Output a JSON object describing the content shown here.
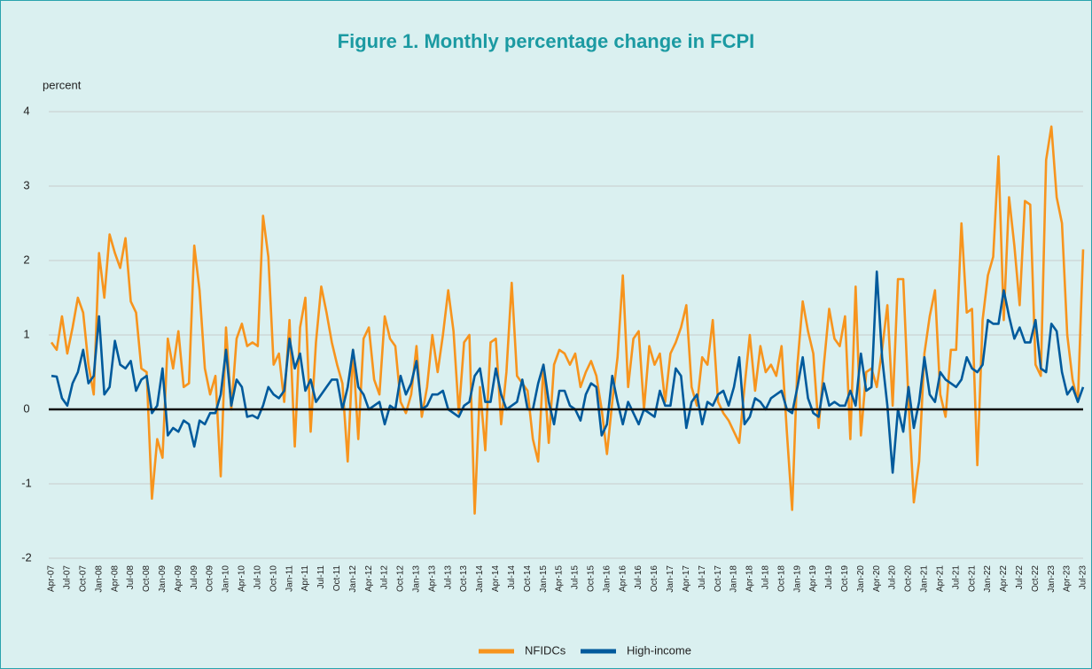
{
  "chart_data": {
    "type": "line",
    "title": "Figure 1. Monthly percentage change in FCPI",
    "y_label": "percent",
    "categories": [
      "Apr-07",
      null,
      null,
      "Jul-07",
      null,
      null,
      "Oct-07",
      null,
      null,
      "Jan-08",
      null,
      null,
      "Apr-08",
      null,
      null,
      "Jul-08",
      null,
      null,
      "Oct-08",
      null,
      null,
      "Jan-09",
      null,
      null,
      "Apr-09",
      null,
      null,
      "Jul-09",
      null,
      null,
      "Oct-09",
      null,
      null,
      "Jan-10",
      null,
      null,
      "Apr-10",
      null,
      null,
      "Jul-10",
      null,
      null,
      "Oct-10",
      null,
      null,
      "Jan-11",
      null,
      null,
      "Apr-11",
      null,
      null,
      "Jul-11",
      null,
      null,
      "Oct-11",
      null,
      null,
      "Jan-12",
      null,
      null,
      "Apr-12",
      null,
      null,
      "Jul-12",
      null,
      null,
      "Oct-12",
      null,
      null,
      "Jan-13",
      null,
      null,
      "Apr-13",
      null,
      null,
      "Jul-13",
      null,
      null,
      "Oct-13",
      null,
      null,
      "Jan-14",
      null,
      null,
      "Apr-14",
      null,
      null,
      "Jul-14",
      null,
      null,
      "Oct-14",
      null,
      null,
      "Jan-15",
      null,
      null,
      "Apr-15",
      null,
      null,
      "Jul-15",
      null,
      null,
      "Oct-15",
      null,
      null,
      "Jan-16",
      null,
      null,
      "Apr-16",
      null,
      null,
      "Jul-16",
      null,
      null,
      "Oct-16",
      null,
      null,
      "Jan-17",
      null,
      null,
      "Apr-17",
      null,
      null,
      "Jul-17",
      null,
      null,
      "Oct-17",
      null,
      null,
      "Jan-18",
      null,
      null,
      "Apr-18",
      null,
      null,
      "Jul-18",
      null,
      null,
      "Oct-18",
      null,
      null,
      "Jan-19",
      null,
      null,
      "Apr-19",
      null,
      null,
      "Jul-19",
      null,
      null,
      "Oct-19",
      null,
      null,
      "Jan-20",
      null,
      null,
      "Apr-20",
      null,
      null,
      "Jul-20",
      null,
      null,
      "Oct-20",
      null,
      null,
      "Jan-21",
      null,
      null,
      "Apr-21",
      null,
      null,
      "Jul-21",
      null,
      null,
      "Oct-21",
      null,
      null,
      "Jan-22",
      null,
      null,
      "Apr-22",
      null,
      null,
      "Jul-22",
      null,
      null,
      "Oct-22",
      null,
      null,
      "Jan-23",
      null,
      null,
      "Apr-23",
      null,
      null,
      "Jul-23"
    ],
    "series": [
      {
        "name": "NFIDCs",
        "color": "#f7941d",
        "values": [
          0.9,
          0.8,
          1.25,
          0.75,
          1.1,
          1.5,
          1.3,
          0.6,
          0.2,
          2.1,
          1.5,
          2.35,
          2.1,
          1.9,
          2.3,
          1.45,
          1.3,
          0.55,
          0.5,
          -1.2,
          -0.4,
          -0.65,
          0.95,
          0.55,
          1.05,
          0.3,
          0.35,
          2.2,
          1.6,
          0.55,
          0.2,
          0.45,
          -0.9,
          1.1,
          0.0,
          0.95,
          1.15,
          0.85,
          0.9,
          0.85,
          2.6,
          2.05,
          0.6,
          0.75,
          0.1,
          1.2,
          -0.5,
          1.1,
          1.5,
          -0.3,
          0.9,
          1.65,
          1.3,
          0.9,
          0.6,
          0.35,
          -0.7,
          0.8,
          -0.4,
          0.95,
          1.1,
          0.4,
          0.2,
          1.25,
          0.95,
          0.85,
          0.1,
          -0.05,
          0.2,
          0.85,
          -0.1,
          0.3,
          1.0,
          0.5,
          1.0,
          1.6,
          1.05,
          -0.05,
          0.9,
          1.0,
          -1.4,
          0.3,
          -0.55,
          0.9,
          0.95,
          -0.2,
          0.5,
          1.7,
          0.45,
          0.35,
          0.25,
          -0.4,
          -0.7,
          0.6,
          -0.45,
          0.6,
          0.8,
          0.75,
          0.6,
          0.75,
          0.3,
          0.5,
          0.65,
          0.45,
          0.0,
          -0.6,
          0.1,
          0.7,
          1.8,
          0.3,
          0.95,
          1.05,
          0.0,
          0.85,
          0.6,
          0.75,
          0.1,
          0.75,
          0.9,
          1.1,
          1.4,
          0.3,
          0.05,
          0.7,
          0.6,
          1.2,
          0.1,
          -0.05,
          -0.15,
          -0.3,
          -0.45,
          0.3,
          1.0,
          0.25,
          0.85,
          0.5,
          0.6,
          0.45,
          0.85,
          -0.3,
          -1.35,
          0.6,
          1.45,
          1.05,
          0.75,
          -0.25,
          0.6,
          1.35,
          0.95,
          0.85,
          1.25,
          -0.4,
          1.65,
          -0.35,
          0.5,
          0.55,
          0.3,
          0.8,
          1.4,
          0.05,
          1.75,
          1.75,
          0.1,
          -1.25,
          -0.7,
          0.75,
          1.25,
          1.6,
          0.2,
          -0.1,
          0.8,
          0.8,
          2.5,
          1.3,
          1.35,
          -0.75,
          1.2,
          1.8,
          2.05,
          3.4,
          1.2,
          2.85,
          2.2,
          1.4,
          2.8,
          2.75,
          0.6,
          0.45,
          3.35,
          3.8,
          2.85,
          2.5,
          1.0,
          0.4,
          0.1,
          2.15
        ]
      },
      {
        "name": "High-income",
        "color": "#005a9c",
        "values": [
          0.45,
          0.44,
          0.15,
          0.05,
          0.35,
          0.5,
          0.8,
          0.35,
          0.45,
          1.25,
          0.2,
          0.3,
          0.92,
          0.6,
          0.55,
          0.65,
          0.25,
          0.4,
          0.45,
          -0.05,
          0.05,
          0.55,
          -0.35,
          -0.25,
          -0.3,
          -0.15,
          -0.2,
          -0.5,
          -0.15,
          -0.2,
          -0.05,
          -0.05,
          0.2,
          0.8,
          0.05,
          0.4,
          0.3,
          -0.1,
          -0.08,
          -0.12,
          0.05,
          0.3,
          0.2,
          0.15,
          0.25,
          0.95,
          0.55,
          0.75,
          0.25,
          0.4,
          0.1,
          0.2,
          0.3,
          0.4,
          0.4,
          0.0,
          0.3,
          0.8,
          0.3,
          0.2,
          0.0,
          0.05,
          0.1,
          -0.2,
          0.05,
          0.0,
          0.45,
          0.2,
          0.35,
          0.65,
          0.0,
          0.05,
          0.2,
          0.2,
          0.25,
          0.0,
          -0.05,
          -0.1,
          0.05,
          0.1,
          0.45,
          0.55,
          0.1,
          0.1,
          0.55,
          0.2,
          0.0,
          0.05,
          0.1,
          0.4,
          0.0,
          0.0,
          0.35,
          0.6,
          0.1,
          -0.2,
          0.25,
          0.25,
          0.05,
          0.0,
          -0.15,
          0.2,
          0.35,
          0.3,
          -0.35,
          -0.2,
          0.45,
          0.1,
          -0.2,
          0.1,
          -0.05,
          -0.2,
          0.0,
          -0.05,
          -0.1,
          0.25,
          0.05,
          0.05,
          0.55,
          0.45,
          -0.25,
          0.1,
          0.2,
          -0.2,
          0.1,
          0.05,
          0.2,
          0.25,
          0.05,
          0.3,
          0.7,
          -0.2,
          -0.1,
          0.15,
          0.1,
          0.0,
          0.15,
          0.2,
          0.25,
          0.0,
          -0.05,
          0.3,
          0.7,
          0.15,
          -0.05,
          -0.1,
          0.35,
          0.05,
          0.1,
          0.05,
          0.05,
          0.25,
          0.05,
          0.75,
          0.25,
          0.3,
          1.85,
          0.7,
          0.05,
          -0.85,
          0.0,
          -0.3,
          0.3,
          -0.25,
          0.1,
          0.7,
          0.2,
          0.1,
          0.5,
          0.4,
          0.35,
          0.3,
          0.4,
          0.7,
          0.55,
          0.5,
          0.6,
          1.2,
          1.15,
          1.15,
          1.6,
          1.25,
          0.95,
          1.1,
          0.9,
          0.9,
          1.2,
          0.55,
          0.5,
          1.15,
          1.05,
          0.5,
          0.2,
          0.3,
          0.1,
          0.3
        ]
      }
    ],
    "ylim": [
      -2,
      4
    ],
    "yticks": [
      -2,
      -1,
      0,
      1,
      2,
      3,
      4
    ],
    "grid": true,
    "zero_line": true,
    "legend": "bottom"
  }
}
